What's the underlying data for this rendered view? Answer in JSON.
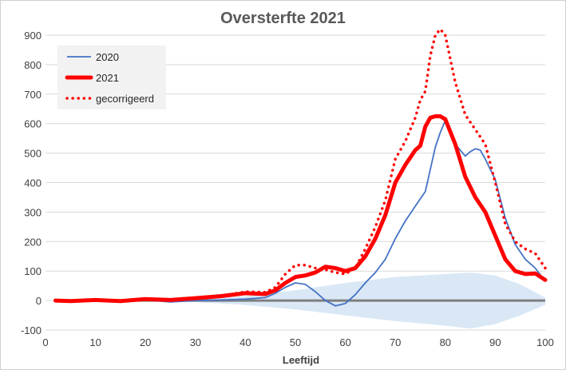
{
  "chart_data": {
    "type": "line",
    "title": "Oversterfte 2021",
    "xlabel": "Leeftijd",
    "ylabel": "",
    "xlim": [
      0,
      100
    ],
    "ylim": [
      -100,
      900
    ],
    "xticks": [
      0,
      10,
      20,
      30,
      40,
      50,
      60,
      70,
      80,
      90,
      100
    ],
    "yticks": [
      -100,
      0,
      100,
      200,
      300,
      400,
      500,
      600,
      700,
      800,
      900
    ],
    "grid": "horizontal",
    "legend": "top-left",
    "colors": {
      "s2020": "#4472c4",
      "s2021": "#ff0000",
      "gecorrigeerd": "#ff0000",
      "band": "#dae8f6",
      "zero_line": "#7f7f7f",
      "grid": "#d9d9d9"
    },
    "series": [
      {
        "name": "2020",
        "style": "solid-thin",
        "x": [
          2,
          5,
          10,
          15,
          20,
          25,
          30,
          35,
          40,
          44,
          46,
          48,
          50,
          52,
          54,
          56,
          58,
          60,
          62,
          64,
          66,
          68,
          70,
          72,
          74,
          76,
          78,
          79,
          80,
          82,
          84,
          85,
          86,
          87,
          88,
          90,
          92,
          94,
          96,
          98,
          100
        ],
        "y": [
          0,
          0,
          2,
          0,
          2,
          -5,
          0,
          2,
          5,
          10,
          25,
          45,
          60,
          55,
          30,
          0,
          -18,
          -10,
          20,
          60,
          95,
          140,
          210,
          270,
          320,
          370,
          520,
          570,
          610,
          530,
          490,
          505,
          515,
          510,
          480,
          410,
          280,
          190,
          140,
          110,
          65
        ]
      },
      {
        "name": "2021",
        "style": "solid-thick",
        "x": [
          2,
          5,
          10,
          15,
          20,
          25,
          30,
          35,
          40,
          44,
          46,
          48,
          50,
          52,
          54,
          56,
          58,
          60,
          62,
          64,
          66,
          68,
          70,
          72,
          74,
          75,
          76,
          77,
          78,
          79,
          80,
          82,
          84,
          86,
          88,
          90,
          92,
          94,
          96,
          98,
          100
        ],
        "y": [
          0,
          -2,
          2,
          -2,
          5,
          2,
          8,
          15,
          25,
          22,
          35,
          60,
          80,
          85,
          95,
          115,
          110,
          100,
          110,
          150,
          210,
          290,
          400,
          460,
          510,
          525,
          590,
          620,
          625,
          625,
          615,
          530,
          420,
          350,
          300,
          220,
          140,
          100,
          90,
          92,
          70
        ]
      },
      {
        "name": "gecorrigeerd",
        "style": "dotted",
        "x": [
          2,
          5,
          10,
          15,
          20,
          25,
          30,
          35,
          40,
          44,
          46,
          48,
          50,
          52,
          54,
          56,
          58,
          60,
          62,
          64,
          66,
          68,
          70,
          72,
          74,
          75,
          76,
          77,
          78,
          79,
          80,
          82,
          84,
          86,
          88,
          90,
          92,
          94,
          96,
          98,
          100
        ],
        "y": [
          0,
          -2,
          2,
          -2,
          5,
          2,
          8,
          15,
          30,
          28,
          45,
          90,
          120,
          120,
          110,
          105,
          95,
          90,
          110,
          175,
          250,
          340,
          480,
          540,
          620,
          680,
          710,
          830,
          900,
          920,
          900,
          740,
          630,
          580,
          530,
          400,
          260,
          200,
          175,
          160,
          110
        ]
      }
    ],
    "band": {
      "x": [
        0,
        20,
        30,
        40,
        50,
        60,
        70,
        80,
        85,
        90,
        95,
        100
      ],
      "upper": [
        0,
        2,
        5,
        15,
        35,
        60,
        80,
        90,
        95,
        85,
        55,
        10
      ],
      "lower": [
        0,
        -2,
        -5,
        -15,
        -30,
        -50,
        -70,
        -85,
        -95,
        -80,
        -50,
        -15
      ]
    }
  }
}
